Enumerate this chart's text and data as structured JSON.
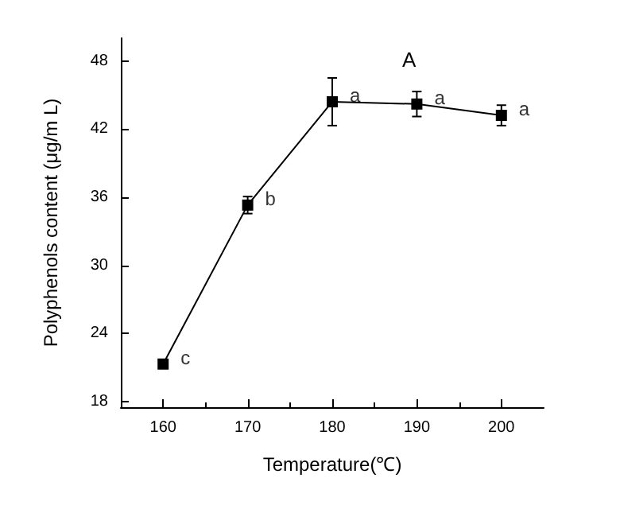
{
  "chart_data": {
    "type": "line",
    "title": "A",
    "xlabel": "Temperature(℃)",
    "ylabel": "Polyphenols content (μg/m L)",
    "x": [
      160,
      170,
      180,
      190,
      200
    ],
    "series": [
      {
        "color": "#000000",
        "values": [
          21.3,
          35.3,
          44.4,
          44.2,
          43.2
        ],
        "errors": [
          0.3,
          0.75,
          2.1,
          1.1,
          0.9
        ]
      }
    ],
    "xlim": [
      155,
      205
    ],
    "xticks": [
      160,
      170,
      180,
      190,
      200
    ],
    "ylim": [
      17.5,
      50
    ],
    "yticks": [
      18,
      24,
      30,
      36,
      42,
      48
    ],
    "annotations": [
      {
        "text": "c",
        "x": 160,
        "y": 21.3
      },
      {
        "text": "b",
        "x": 170,
        "y": 35.3
      },
      {
        "text": "a",
        "x": 180,
        "y": 44.4
      },
      {
        "text": "a",
        "x": 190,
        "y": 44.2
      },
      {
        "text": "a",
        "x": 200,
        "y": 43.2
      }
    ],
    "marker": "square",
    "line_style": "solid",
    "grid": false
  }
}
